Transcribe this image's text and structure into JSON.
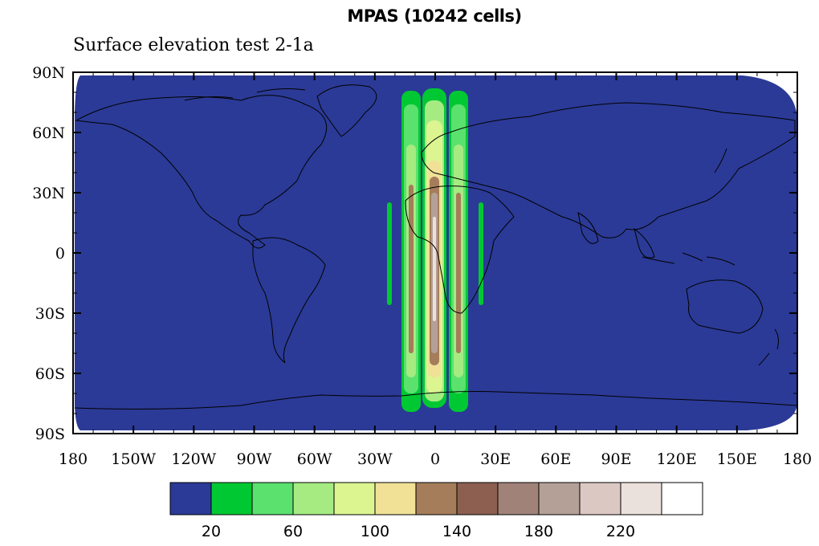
{
  "title": "MPAS (10242 cells)",
  "subtitle": "Surface elevation test 2-1a",
  "colors": {
    "ocean": "#2b3a96",
    "levels": [
      "#2b3a96",
      "#00c832",
      "#5ae16e",
      "#a5eb82",
      "#dcf591",
      "#f0e196",
      "#a57d5a",
      "#8c5f50",
      "#a08278",
      "#b4a096",
      "#dcc8c3",
      "#ebe1dc",
      "#ffffff"
    ]
  },
  "map": {
    "lon_range": [
      -180,
      180
    ],
    "lat_range": [
      -90,
      90
    ],
    "x_ticks": [
      "180",
      "150W",
      "120W",
      "90W",
      "60W",
      "30W",
      "0",
      "30E",
      "60E",
      "90E",
      "120E",
      "150E",
      "180"
    ],
    "y_ticks": [
      "90N",
      "60N",
      "30N",
      "0",
      "30S",
      "60S",
      "90S"
    ]
  },
  "colorbar": {
    "labels": [
      "20",
      "60",
      "100",
      "140",
      "180",
      "220"
    ]
  }
}
